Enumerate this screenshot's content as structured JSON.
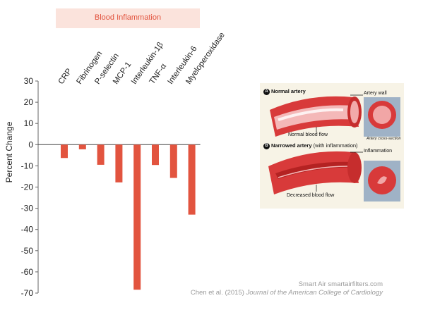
{
  "chart_data": {
    "type": "bar",
    "title": "Blood Inflammation",
    "ylabel": "Percent Change",
    "xlabel": "",
    "categories": [
      "CRP",
      "Fibrinogen",
      "P-selectin",
      "MCP-1",
      "Interleukin-1β",
      "TNF-α",
      "Interleukin-6",
      "Myeloperoxidase"
    ],
    "values": [
      -6.3,
      -2.2,
      -9.5,
      -17.8,
      -68.4,
      -9.6,
      -15.7,
      -33
    ],
    "ylim": [
      -70,
      30
    ],
    "yticks": [
      30,
      20,
      10,
      0,
      -10,
      -20,
      -30,
      -40,
      -50,
      -60,
      -70
    ],
    "bar_color": "#e2543f",
    "grid": false
  },
  "credits": {
    "line1": "Smart Air smartairfilters.com",
    "line2_prefix": "Chen et al. (2015)",
    "line2_journal": "Journal of the American College of Cardiology"
  },
  "illustration": {
    "panel_a_letter": "A",
    "panel_a_title": "Normal artery",
    "artery_wall": "Artery wall",
    "normal_flow": "Normal blood flow",
    "cross_section": "Artery cross-section",
    "panel_b_letter": "B",
    "panel_b_title": "Narrowed artery",
    "panel_b_sub": "(with inflammation)",
    "inflammation": "Inflammation",
    "decreased_flow": "Decreased blood flow"
  }
}
